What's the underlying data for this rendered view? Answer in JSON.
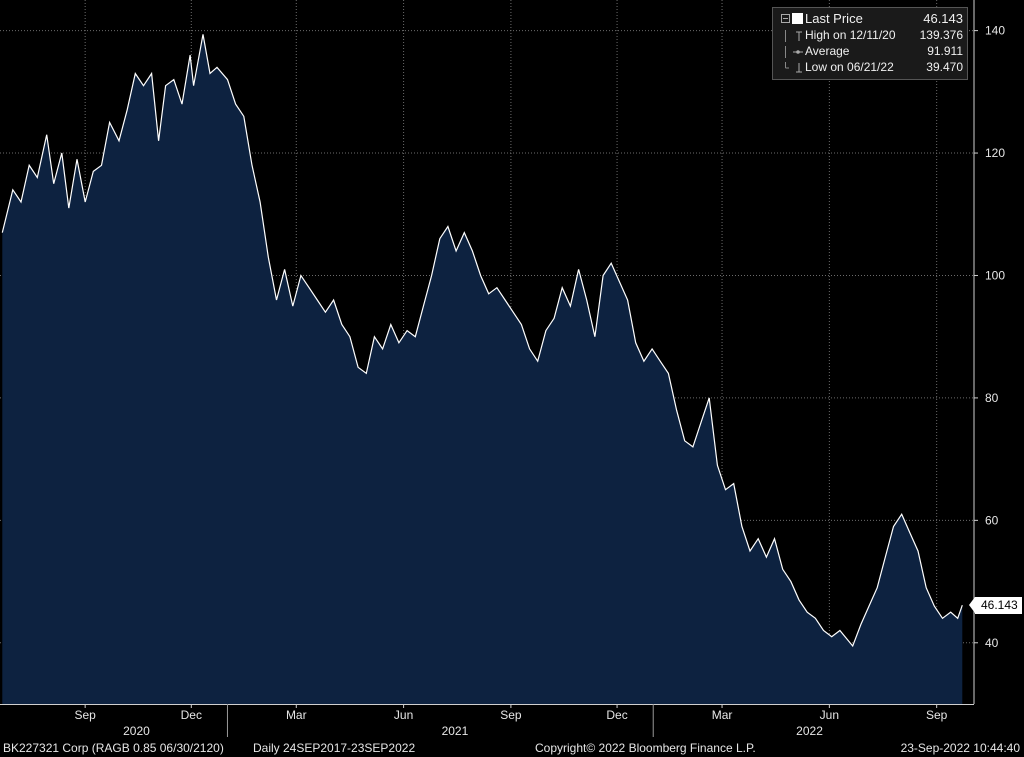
{
  "chart_data": {
    "type": "area",
    "title": "",
    "xlabel": "",
    "ylabel": "",
    "x_range": [
      "2020-06-20",
      "2022-10-03"
    ],
    "ylim": [
      30,
      145
    ],
    "y_ticks": [
      40,
      60,
      80,
      100,
      120,
      140
    ],
    "x_ticks": [
      {
        "label": "Sep",
        "date": "2020-09-01"
      },
      {
        "label": "Dec",
        "date": "2020-12-01"
      },
      {
        "label": "Mar",
        "date": "2021-03-01"
      },
      {
        "label": "Jun",
        "date": "2021-06-01"
      },
      {
        "label": "Sep",
        "date": "2021-09-01"
      },
      {
        "label": "Dec",
        "date": "2021-12-01"
      },
      {
        "label": "Mar",
        "date": "2022-03-01"
      },
      {
        "label": "Jun",
        "date": "2022-06-01"
      },
      {
        "label": "Sep",
        "date": "2022-09-01"
      }
    ],
    "years": [
      {
        "label": "2020",
        "date": "2020-10-15"
      },
      {
        "label": "2021",
        "date": "2021-07-15"
      },
      {
        "label": "2022",
        "date": "2022-05-15"
      }
    ],
    "year_separators": [
      "2021-01-01",
      "2022-01-01"
    ],
    "grid": true,
    "legend_position": "top-right",
    "series": [
      {
        "name": "Last Price",
        "color": "#ffffff",
        "fill": "#0d2240",
        "points": [
          [
            "2020-06-22",
            107
          ],
          [
            "2020-07-01",
            114
          ],
          [
            "2020-07-08",
            112
          ],
          [
            "2020-07-15",
            118
          ],
          [
            "2020-07-22",
            116
          ],
          [
            "2020-07-30",
            123
          ],
          [
            "2020-08-05",
            115
          ],
          [
            "2020-08-12",
            120
          ],
          [
            "2020-08-18",
            111
          ],
          [
            "2020-08-25",
            119
          ],
          [
            "2020-09-01",
            112
          ],
          [
            "2020-09-08",
            117
          ],
          [
            "2020-09-15",
            118
          ],
          [
            "2020-09-22",
            125
          ],
          [
            "2020-09-30",
            122
          ],
          [
            "2020-10-07",
            127
          ],
          [
            "2020-10-14",
            133
          ],
          [
            "2020-10-21",
            131
          ],
          [
            "2020-10-28",
            133
          ],
          [
            "2020-11-03",
            122
          ],
          [
            "2020-11-09",
            131
          ],
          [
            "2020-11-16",
            132
          ],
          [
            "2020-11-23",
            128
          ],
          [
            "2020-11-30",
            136
          ],
          [
            "2020-12-03",
            131
          ],
          [
            "2020-12-11",
            139.376
          ],
          [
            "2020-12-17",
            133
          ],
          [
            "2020-12-23",
            134
          ],
          [
            "2021-01-01",
            132
          ],
          [
            "2021-01-08",
            128
          ],
          [
            "2021-01-15",
            126
          ],
          [
            "2021-01-22",
            118
          ],
          [
            "2021-01-29",
            112
          ],
          [
            "2021-02-05",
            103
          ],
          [
            "2021-02-12",
            96
          ],
          [
            "2021-02-19",
            101
          ],
          [
            "2021-02-26",
            95
          ],
          [
            "2021-03-05",
            100
          ],
          [
            "2021-03-12",
            98
          ],
          [
            "2021-03-19",
            96
          ],
          [
            "2021-03-26",
            94
          ],
          [
            "2021-04-02",
            96
          ],
          [
            "2021-04-09",
            92
          ],
          [
            "2021-04-16",
            90
          ],
          [
            "2021-04-23",
            85
          ],
          [
            "2021-04-30",
            84
          ],
          [
            "2021-05-07",
            90
          ],
          [
            "2021-05-14",
            88
          ],
          [
            "2021-05-21",
            92
          ],
          [
            "2021-05-28",
            89
          ],
          [
            "2021-06-04",
            91
          ],
          [
            "2021-06-11",
            90
          ],
          [
            "2021-06-18",
            95
          ],
          [
            "2021-06-25",
            100
          ],
          [
            "2021-07-02",
            106
          ],
          [
            "2021-07-09",
            108
          ],
          [
            "2021-07-16",
            104
          ],
          [
            "2021-07-23",
            107
          ],
          [
            "2021-07-30",
            104
          ],
          [
            "2021-08-06",
            100
          ],
          [
            "2021-08-13",
            97
          ],
          [
            "2021-08-20",
            98
          ],
          [
            "2021-08-27",
            96
          ],
          [
            "2021-09-03",
            94
          ],
          [
            "2021-09-10",
            92
          ],
          [
            "2021-09-17",
            88
          ],
          [
            "2021-09-24",
            86
          ],
          [
            "2021-10-01",
            91
          ],
          [
            "2021-10-08",
            93
          ],
          [
            "2021-10-15",
            98
          ],
          [
            "2021-10-22",
            95
          ],
          [
            "2021-10-29",
            101
          ],
          [
            "2021-11-05",
            96
          ],
          [
            "2021-11-12",
            90
          ],
          [
            "2021-11-19",
            100
          ],
          [
            "2021-11-26",
            102
          ],
          [
            "2021-12-03",
            99
          ],
          [
            "2021-12-10",
            96
          ],
          [
            "2021-12-17",
            89
          ],
          [
            "2021-12-24",
            86
          ],
          [
            "2021-12-31",
            88
          ],
          [
            "2022-01-07",
            86
          ],
          [
            "2022-01-14",
            84
          ],
          [
            "2022-01-21",
            78
          ],
          [
            "2022-01-28",
            73
          ],
          [
            "2022-02-04",
            72
          ],
          [
            "2022-02-11",
            76
          ],
          [
            "2022-02-18",
            80
          ],
          [
            "2022-02-25",
            69
          ],
          [
            "2022-03-04",
            65
          ],
          [
            "2022-03-11",
            66
          ],
          [
            "2022-03-18",
            59
          ],
          [
            "2022-03-25",
            55
          ],
          [
            "2022-04-01",
            57
          ],
          [
            "2022-04-08",
            54
          ],
          [
            "2022-04-15",
            57
          ],
          [
            "2022-04-22",
            52
          ],
          [
            "2022-04-29",
            50
          ],
          [
            "2022-05-06",
            47
          ],
          [
            "2022-05-13",
            45
          ],
          [
            "2022-05-20",
            44
          ],
          [
            "2022-05-27",
            42
          ],
          [
            "2022-06-03",
            41
          ],
          [
            "2022-06-10",
            42
          ],
          [
            "2022-06-21",
            39.47
          ],
          [
            "2022-06-28",
            43
          ],
          [
            "2022-07-05",
            46
          ],
          [
            "2022-07-12",
            49
          ],
          [
            "2022-07-19",
            54
          ],
          [
            "2022-07-26",
            59
          ],
          [
            "2022-08-02",
            61
          ],
          [
            "2022-08-09",
            58
          ],
          [
            "2022-08-16",
            55
          ],
          [
            "2022-08-23",
            49
          ],
          [
            "2022-08-30",
            46
          ],
          [
            "2022-09-06",
            44
          ],
          [
            "2022-09-13",
            45
          ],
          [
            "2022-09-19",
            44
          ],
          [
            "2022-09-23",
            46.143
          ]
        ]
      }
    ],
    "legend": [
      {
        "name": "Last Price",
        "value": "46.143",
        "icon": "filled-square"
      },
      {
        "name": "High on 12/11/20",
        "value": "139.376",
        "icon": "high-marker"
      },
      {
        "name": "Average",
        "value": "91.911",
        "icon": "average-marker"
      },
      {
        "name": "Low on 06/21/22",
        "value": "39.470",
        "icon": "low-marker"
      }
    ],
    "last_value_label": "46.143"
  },
  "footer": {
    "security": "BK227321 Corp (RAGB 0.85 06/30/2120)",
    "range": "Daily 24SEP2017-23SEP2022",
    "copyright": "Copyright© 2022 Bloomberg Finance L.P.",
    "timestamp": "23-Sep-2022 10:44:40"
  }
}
